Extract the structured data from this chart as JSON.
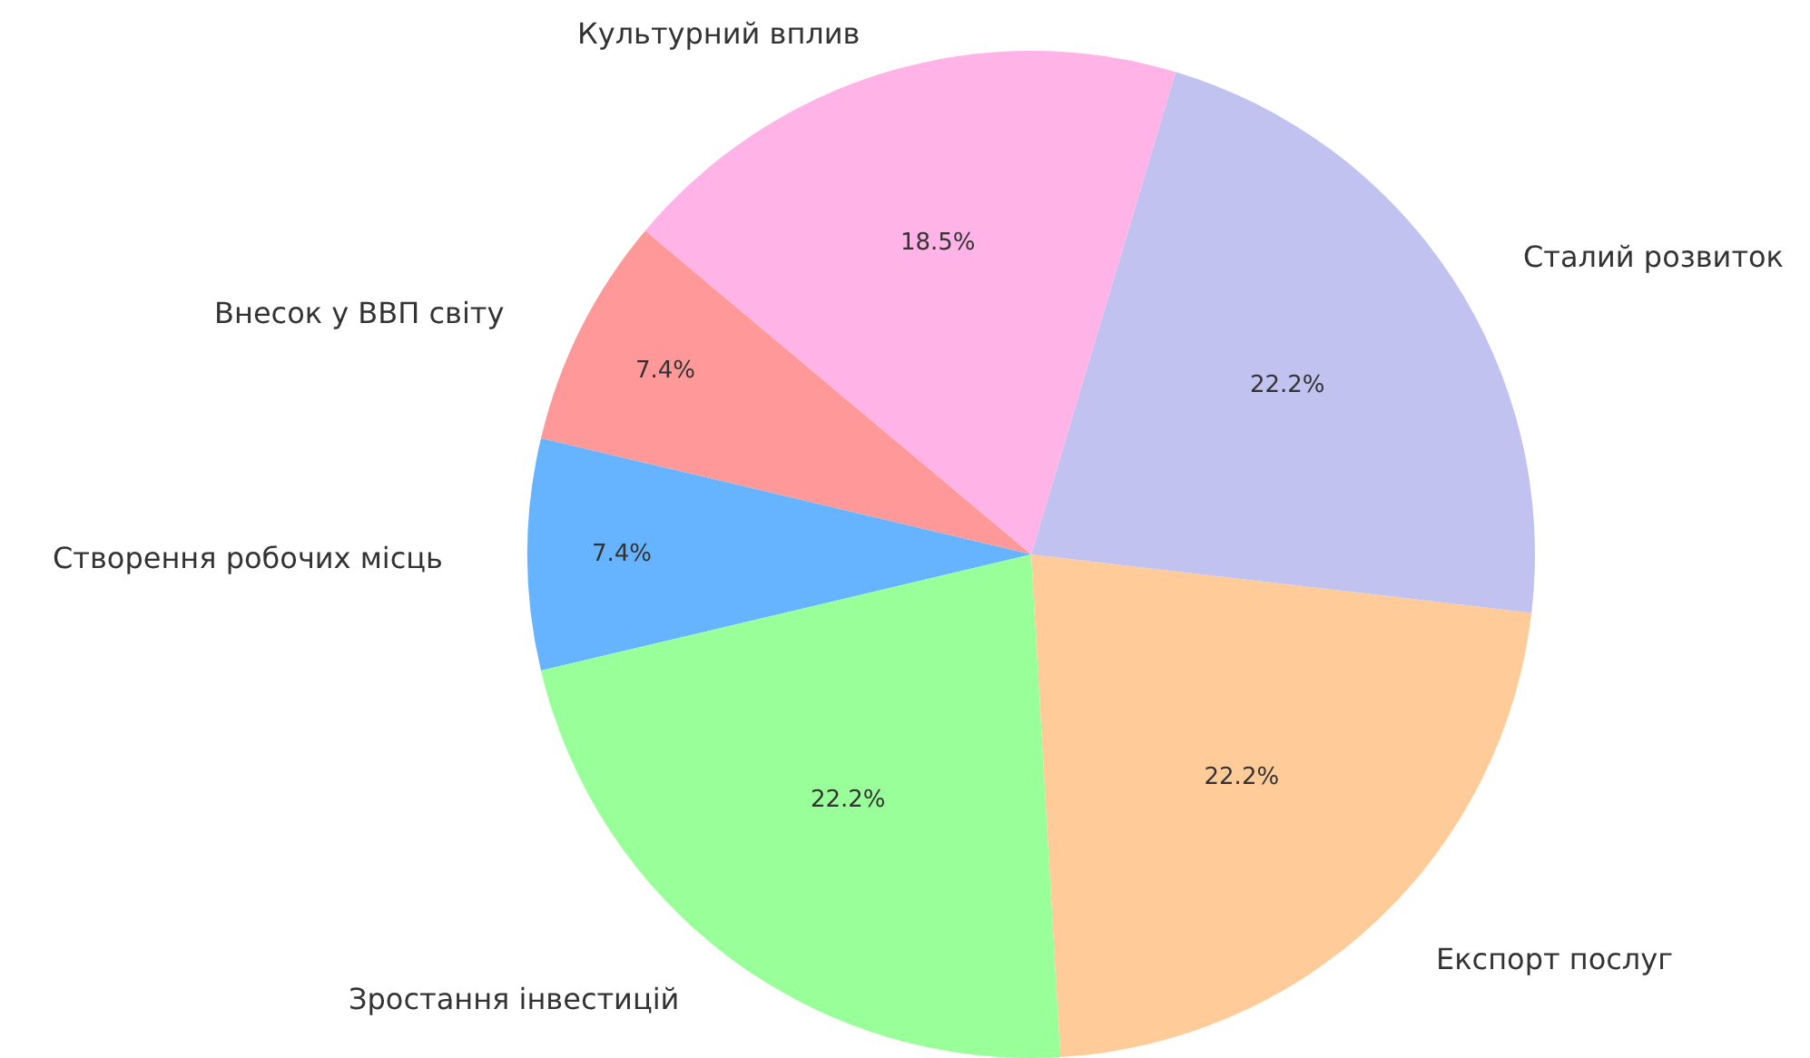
{
  "chart_data": {
    "type": "pie",
    "categories": [
      "Внесок у ВВП світу",
      "Створення робочих місць",
      "Зростання інвестицій",
      "Експорт послуг",
      "Сталий розвиток",
      "Культурний вплив"
    ],
    "values": [
      7.4,
      7.4,
      22.2,
      22.2,
      22.2,
      18.5
    ],
    "value_labels": [
      "7.4%",
      "7.4%",
      "22.2%",
      "22.2%",
      "22.2%",
      "18.5%"
    ],
    "colors": [
      "#ff9999",
      "#66b3ff",
      "#99ff99",
      "#ffcc99",
      "#c2c2f0",
      "#ffb3e6"
    ]
  }
}
